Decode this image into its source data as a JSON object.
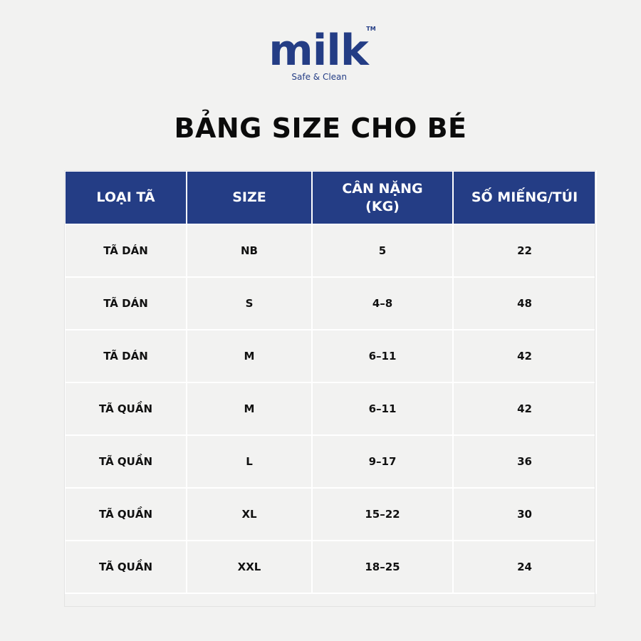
{
  "brand": {
    "name": "milk",
    "tm": "TM",
    "tagline": "Safe & Clean",
    "color": "#243d85"
  },
  "title": "BẢNG SIZE CHO BÉ",
  "table": {
    "header_color": "#243d85",
    "headers": {
      "type": "LOẠI TÃ",
      "size": "SIZE",
      "weight_line1": "CÂN NẶNG",
      "weight_line2": "(KG)",
      "count": "SỐ MIẾNG/TÚI"
    },
    "rows": [
      {
        "type": "TÃ DÁN",
        "size": "NB",
        "weight": "5",
        "count": "22"
      },
      {
        "type": "TÃ DÁN",
        "size": "S",
        "weight": "4–8",
        "count": "48"
      },
      {
        "type": "TÃ DÁN",
        "size": "M",
        "weight": "6–11",
        "count": "42"
      },
      {
        "type": "TÃ QUẦN",
        "size": "M",
        "weight": "6–11",
        "count": "42"
      },
      {
        "type": "TÃ QUẦN",
        "size": "L",
        "weight": "9–17",
        "count": "36"
      },
      {
        "type": "TÃ QUẦN",
        "size": "XL",
        "weight": "15–22",
        "count": "30"
      },
      {
        "type": "TÃ QUẦN",
        "size": "XXL",
        "weight": "18–25",
        "count": "24"
      }
    ]
  }
}
